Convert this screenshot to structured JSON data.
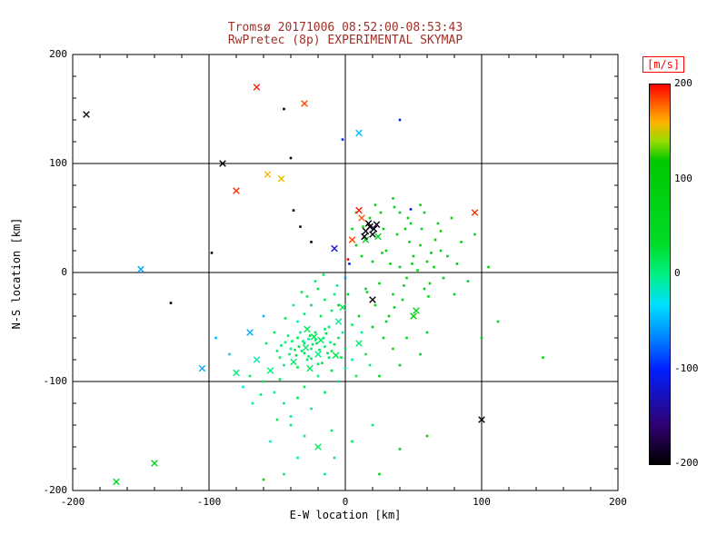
{
  "title": {
    "line1": "Tromsø 20171006 08:52:00-08:53:43",
    "line2": "RwPretec (8p) EXPERIMENTAL SKYMAP",
    "color": "#a03028"
  },
  "colorbar": {
    "label": "[m/s]",
    "label_color": "#ff0000",
    "ticks": [
      200,
      100,
      0,
      -100,
      -200
    ],
    "min": -200,
    "max": 200,
    "stops": [
      [
        0.0,
        [
          0,
          0,
          0
        ]
      ],
      [
        0.1,
        [
          48,
          0,
          110
        ]
      ],
      [
        0.25,
        [
          0,
          32,
          255
        ]
      ],
      [
        0.33,
        [
          0,
          128,
          255
        ]
      ],
      [
        0.42,
        [
          0,
          224,
          255
        ]
      ],
      [
        0.5,
        [
          0,
          240,
          130
        ]
      ],
      [
        0.58,
        [
          0,
          220,
          40
        ]
      ],
      [
        0.8,
        [
          0,
          200,
          0
        ]
      ],
      [
        0.85,
        [
          150,
          220,
          0
        ]
      ],
      [
        0.9,
        [
          255,
          180,
          0
        ]
      ],
      [
        0.94,
        [
          255,
          110,
          0
        ]
      ],
      [
        1.0,
        [
          255,
          0,
          0
        ]
      ]
    ]
  },
  "chart_data": {
    "type": "scatter",
    "title": "Tromsø 20171006 08:52:00-08:53:43 / RwPretec (8p) EXPERIMENTAL SKYMAP",
    "xlabel": "E-W location [km]",
    "ylabel": "N-S location [km]",
    "xlim": [
      -200,
      200
    ],
    "ylim": [
      -200,
      200
    ],
    "xticks": [
      -200,
      -100,
      0,
      100,
      200
    ],
    "yticks": [
      -200,
      -100,
      0,
      100,
      200
    ],
    "grid": true,
    "legend": "colorbar right, Doppler velocity [m/s], -200 to 200",
    "point_format": "[x_km, y_km, velocity_m_s, marker: d=dot, x=cross]",
    "points": [
      [
        -25,
        -70,
        8,
        "d"
      ],
      [
        -30,
        -65,
        15,
        "d"
      ],
      [
        -20,
        -75,
        2,
        "x"
      ],
      [
        -35,
        -60,
        20,
        "d"
      ],
      [
        -15,
        -68,
        10,
        "d"
      ],
      [
        -28,
        -80,
        5,
        "d"
      ],
      [
        -22,
        -55,
        18,
        "d"
      ],
      [
        -40,
        -70,
        0,
        "d"
      ],
      [
        -18,
        -62,
        12,
        "x"
      ],
      [
        -32,
        -72,
        8,
        "d"
      ],
      [
        -26,
        -58,
        25,
        "d"
      ],
      [
        -12,
        -78,
        15,
        "d"
      ],
      [
        -38,
        -82,
        5,
        "x"
      ],
      [
        -24,
        -66,
        10,
        "d"
      ],
      [
        -30,
        -74,
        18,
        "d"
      ],
      [
        -16,
        -60,
        3,
        "d"
      ],
      [
        -34,
        -68,
        22,
        "d"
      ],
      [
        -20,
        -84,
        8,
        "d"
      ],
      [
        -28,
        -52,
        15,
        "x"
      ],
      [
        -44,
        -64,
        0,
        "d"
      ],
      [
        -10,
        -72,
        12,
        "d"
      ],
      [
        -36,
        -76,
        20,
        "d"
      ],
      [
        -22,
        -62,
        6,
        "d"
      ],
      [
        -48,
        -78,
        14,
        "d"
      ],
      [
        -14,
        -56,
        25,
        "d"
      ],
      [
        -26,
        -88,
        10,
        "x"
      ],
      [
        -42,
        -58,
        5,
        "d"
      ],
      [
        -8,
        -66,
        18,
        "d"
      ],
      [
        -31,
        -63,
        2,
        "d"
      ],
      [
        -19,
        -71,
        15,
        "d"
      ],
      [
        -27,
        -77,
        8,
        "d"
      ],
      [
        -23,
        -59,
        20,
        "x"
      ],
      [
        -37,
        -71,
        12,
        "d"
      ],
      [
        -45,
        -85,
        5,
        "d"
      ],
      [
        -5,
        -60,
        16,
        "d"
      ],
      [
        -50,
        -72,
        10,
        "d"
      ],
      [
        -33,
        -55,
        0,
        "d"
      ],
      [
        -17,
        -83,
        22,
        "d"
      ],
      [
        -29,
        -69,
        7,
        "x"
      ],
      [
        -21,
        -65,
        14,
        "d"
      ],
      [
        -13,
        -74,
        19,
        "d"
      ],
      [
        -39,
        -63,
        4,
        "d"
      ],
      [
        -25,
        -79,
        11,
        "d"
      ],
      [
        -35,
        -87,
        17,
        "d"
      ],
      [
        -11,
        -64,
        -5,
        "d"
      ],
      [
        -47,
        -67,
        9,
        "d"
      ],
      [
        -7,
        -76,
        21,
        "x"
      ],
      [
        -41,
        -75,
        6,
        "d"
      ],
      [
        -15,
        -52,
        13,
        "d"
      ],
      [
        -27,
        -61,
        -8,
        "d"
      ],
      [
        -55,
        -90,
        5,
        "x"
      ],
      [
        -60,
        -100,
        12,
        "d"
      ],
      [
        -52,
        -110,
        -10,
        "d"
      ],
      [
        -45,
        -120,
        8,
        "d"
      ],
      [
        -30,
        -105,
        15,
        "d"
      ],
      [
        -20,
        -95,
        0,
        "d"
      ],
      [
        -10,
        -90,
        20,
        "d"
      ],
      [
        -65,
        -80,
        -15,
        "x"
      ],
      [
        -70,
        -95,
        6,
        "d"
      ],
      [
        -58,
        -65,
        11,
        "d"
      ],
      [
        -75,
        -105,
        -20,
        "d"
      ],
      [
        -35,
        -115,
        14,
        "d"
      ],
      [
        -25,
        -125,
        3,
        "d"
      ],
      [
        -15,
        -110,
        18,
        "d"
      ],
      [
        -5,
        -100,
        9,
        "d"
      ],
      [
        -68,
        -120,
        -12,
        "d"
      ],
      [
        -80,
        -92,
        5,
        "x"
      ],
      [
        -48,
        -98,
        16,
        "d"
      ],
      [
        -40,
        -132,
        -6,
        "d"
      ],
      [
        -62,
        -112,
        10,
        "d"
      ],
      [
        -18,
        -40,
        12,
        "d"
      ],
      [
        -10,
        -35,
        5,
        "d"
      ],
      [
        -25,
        -30,
        18,
        "d"
      ],
      [
        -5,
        -45,
        -10,
        "x"
      ],
      [
        -30,
        -38,
        8,
        "d"
      ],
      [
        -15,
        -25,
        15,
        "d"
      ],
      [
        -8,
        -20,
        0,
        "d"
      ],
      [
        -20,
        -15,
        22,
        "d"
      ],
      [
        -12,
        -50,
        10,
        "d"
      ],
      [
        -35,
        -45,
        -15,
        "d"
      ],
      [
        -28,
        -22,
        6,
        "d"
      ],
      [
        -2,
        -32,
        13,
        "x"
      ],
      [
        -22,
        -8,
        9,
        "d"
      ],
      [
        -32,
        -18,
        17,
        "d"
      ],
      [
        -6,
        -12,
        -4,
        "d"
      ],
      [
        -16,
        -2,
        11,
        "d"
      ],
      [
        -38,
        -30,
        4,
        "d"
      ],
      [
        -44,
        -42,
        19,
        "d"
      ],
      [
        -2,
        -55,
        -9,
        "d"
      ],
      [
        -52,
        -55,
        7,
        "d"
      ],
      [
        0,
        -70,
        14,
        "d"
      ],
      [
        5,
        -80,
        -12,
        "d"
      ],
      [
        10,
        -65,
        8,
        "x"
      ],
      [
        15,
        -75,
        16,
        "d"
      ],
      [
        0,
        -88,
        3,
        "d"
      ],
      [
        8,
        -95,
        12,
        "d"
      ],
      [
        -3,
        -78,
        20,
        "d"
      ],
      [
        12,
        -55,
        -7,
        "d"
      ],
      [
        5,
        -48,
        10,
        "d"
      ],
      [
        18,
        -85,
        5,
        "d"
      ],
      [
        -40,
        -140,
        8,
        "d"
      ],
      [
        -30,
        -150,
        -14,
        "d"
      ],
      [
        -20,
        -160,
        12,
        "x"
      ],
      [
        -10,
        -145,
        5,
        "d"
      ],
      [
        -50,
        -135,
        15,
        "d"
      ],
      [
        -35,
        -170,
        0,
        "d"
      ],
      [
        -45,
        -185,
        10,
        "d"
      ],
      [
        -55,
        -155,
        -18,
        "d"
      ],
      [
        -8,
        -170,
        7,
        "d"
      ],
      [
        5,
        -155,
        14,
        "d"
      ],
      [
        -15,
        -185,
        -5,
        "d"
      ],
      [
        20,
        -140,
        9,
        "d"
      ],
      [
        20,
        10,
        70,
        "d"
      ],
      [
        30,
        20,
        85,
        "d"
      ],
      [
        40,
        5,
        60,
        "d"
      ],
      [
        50,
        15,
        95,
        "d"
      ],
      [
        25,
        -10,
        75,
        "d"
      ],
      [
        35,
        -20,
        65,
        "d"
      ],
      [
        45,
        -5,
        80,
        "d"
      ],
      [
        55,
        25,
        90,
        "d"
      ],
      [
        60,
        10,
        70,
        "d"
      ],
      [
        15,
        30,
        60,
        "x"
      ],
      [
        28,
        40,
        85,
        "d"
      ],
      [
        38,
        35,
        75,
        "d"
      ],
      [
        48,
        45,
        65,
        "d"
      ],
      [
        58,
        -15,
        95,
        "d"
      ],
      [
        65,
        5,
        70,
        "d"
      ],
      [
        70,
        20,
        80,
        "d"
      ],
      [
        22,
        -30,
        60,
        "d"
      ],
      [
        32,
        -40,
        90,
        "d"
      ],
      [
        42,
        -25,
        75,
        "d"
      ],
      [
        52,
        -35,
        65,
        "x"
      ],
      [
        62,
        -10,
        85,
        "d"
      ],
      [
        18,
        50,
        70,
        "d"
      ],
      [
        26,
        55,
        95,
        "d"
      ],
      [
        36,
        60,
        60,
        "d"
      ],
      [
        46,
        50,
        80,
        "d"
      ],
      [
        56,
        40,
        70,
        "d"
      ],
      [
        66,
        30,
        90,
        "d"
      ],
      [
        72,
        -5,
        65,
        "d"
      ],
      [
        12,
        15,
        75,
        "d"
      ],
      [
        8,
        25,
        85,
        "d"
      ],
      [
        30,
        -45,
        60,
        "d"
      ],
      [
        50,
        -40,
        95,
        "x"
      ],
      [
        68,
        45,
        70,
        "d"
      ],
      [
        75,
        15,
        80,
        "d"
      ],
      [
        40,
        55,
        65,
        "d"
      ],
      [
        33,
        8,
        90,
        "d"
      ],
      [
        47,
        28,
        75,
        "d"
      ],
      [
        53,
        2,
        60,
        "d"
      ],
      [
        27,
        18,
        85,
        "d"
      ],
      [
        43,
        -12,
        70,
        "d"
      ],
      [
        63,
        18,
        95,
        "d"
      ],
      [
        58,
        55,
        65,
        "d"
      ],
      [
        70,
        38,
        80,
        "d"
      ],
      [
        16,
        -18,
        75,
        "d"
      ],
      [
        24,
        33,
        60,
        "x"
      ],
      [
        44,
        40,
        90,
        "d"
      ],
      [
        36,
        -32,
        70,
        "d"
      ],
      [
        49,
        8,
        85,
        "d"
      ],
      [
        61,
        -22,
        65,
        "d"
      ],
      [
        13,
        42,
        75,
        "d"
      ],
      [
        80,
        -20,
        60,
        "d"
      ],
      [
        85,
        28,
        90,
        "d"
      ],
      [
        90,
        -8,
        70,
        "d"
      ],
      [
        78,
        50,
        80,
        "d"
      ],
      [
        22,
        62,
        65,
        "d"
      ],
      [
        35,
        68,
        75,
        "d"
      ],
      [
        8,
        55,
        85,
        "d"
      ],
      [
        5,
        40,
        60,
        "d"
      ],
      [
        55,
        62,
        70,
        "d"
      ],
      [
        82,
        8,
        95,
        "d"
      ],
      [
        -5,
        -30,
        55,
        "d"
      ],
      [
        2,
        -20,
        65,
        "d"
      ],
      [
        10,
        -40,
        70,
        "d"
      ],
      [
        15,
        -15,
        60,
        "d"
      ],
      [
        20,
        -50,
        80,
        "d"
      ],
      [
        28,
        -60,
        65,
        "d"
      ],
      [
        35,
        -70,
        70,
        "d"
      ],
      [
        45,
        -60,
        60,
        "d"
      ],
      [
        40,
        -85,
        75,
        "d"
      ],
      [
        25,
        -95,
        65,
        "d"
      ],
      [
        55,
        -75,
        70,
        "d"
      ],
      [
        60,
        -55,
        60,
        "d"
      ],
      [
        100,
        -60,
        70,
        "d"
      ],
      [
        112,
        -45,
        65,
        "d"
      ],
      [
        145,
        -78,
        75,
        "d"
      ],
      [
        95,
        35,
        60,
        "d"
      ],
      [
        105,
        5,
        80,
        "d"
      ],
      [
        60,
        -150,
        70,
        "d"
      ],
      [
        40,
        -162,
        60,
        "d"
      ],
      [
        25,
        -185,
        75,
        "d"
      ],
      [
        -140,
        -175,
        70,
        "x"
      ],
      [
        -168,
        -192,
        60,
        "x"
      ],
      [
        -60,
        -190,
        65,
        "d"
      ],
      [
        10,
        128,
        -45,
        "x"
      ],
      [
        -150,
        3,
        -55,
        "x"
      ],
      [
        -105,
        -88,
        -50,
        "x"
      ],
      [
        0,
        -5,
        -60,
        "d"
      ],
      [
        -95,
        -60,
        -45,
        "d"
      ],
      [
        -60,
        -40,
        -45,
        "d"
      ],
      [
        -70,
        -55,
        -50,
        "x"
      ],
      [
        -85,
        -75,
        -40,
        "d"
      ],
      [
        40,
        140,
        -110,
        "d"
      ],
      [
        -2,
        122,
        -100,
        "d"
      ],
      [
        -8,
        22,
        -120,
        "x"
      ],
      [
        3,
        8,
        -105,
        "d"
      ],
      [
        48,
        58,
        -115,
        "d"
      ],
      [
        -190,
        145,
        -195,
        "x"
      ],
      [
        -90,
        100,
        -200,
        "x"
      ],
      [
        15,
        38,
        -195,
        "x"
      ],
      [
        18,
        42,
        -200,
        "x"
      ],
      [
        21,
        40,
        -190,
        "x"
      ],
      [
        17,
        45,
        -200,
        "x"
      ],
      [
        20,
        35,
        -195,
        "x"
      ],
      [
        23,
        44,
        -185,
        "x"
      ],
      [
        14,
        33,
        -200,
        "x"
      ],
      [
        100,
        -135,
        -195,
        "x"
      ],
      [
        20,
        -25,
        -200,
        "x"
      ],
      [
        -45,
        150,
        -190,
        "d"
      ],
      [
        -40,
        105,
        -195,
        "d"
      ],
      [
        -25,
        28,
        -200,
        "d"
      ],
      [
        -33,
        42,
        -190,
        "d"
      ],
      [
        -38,
        57,
        -185,
        "d"
      ],
      [
        -128,
        -28,
        -195,
        "d"
      ],
      [
        -98,
        18,
        -190,
        "d"
      ],
      [
        -65,
        170,
        195,
        "x"
      ],
      [
        -30,
        155,
        185,
        "x"
      ],
      [
        -80,
        75,
        190,
        "x"
      ],
      [
        -57,
        90,
        160,
        "x"
      ],
      [
        -47,
        86,
        155,
        "x"
      ],
      [
        10,
        57,
        195,
        "x"
      ],
      [
        95,
        55,
        190,
        "x"
      ],
      [
        5,
        30,
        185,
        "x"
      ],
      [
        2,
        12,
        200,
        "d"
      ],
      [
        12,
        50,
        180,
        "x"
      ]
    ]
  }
}
